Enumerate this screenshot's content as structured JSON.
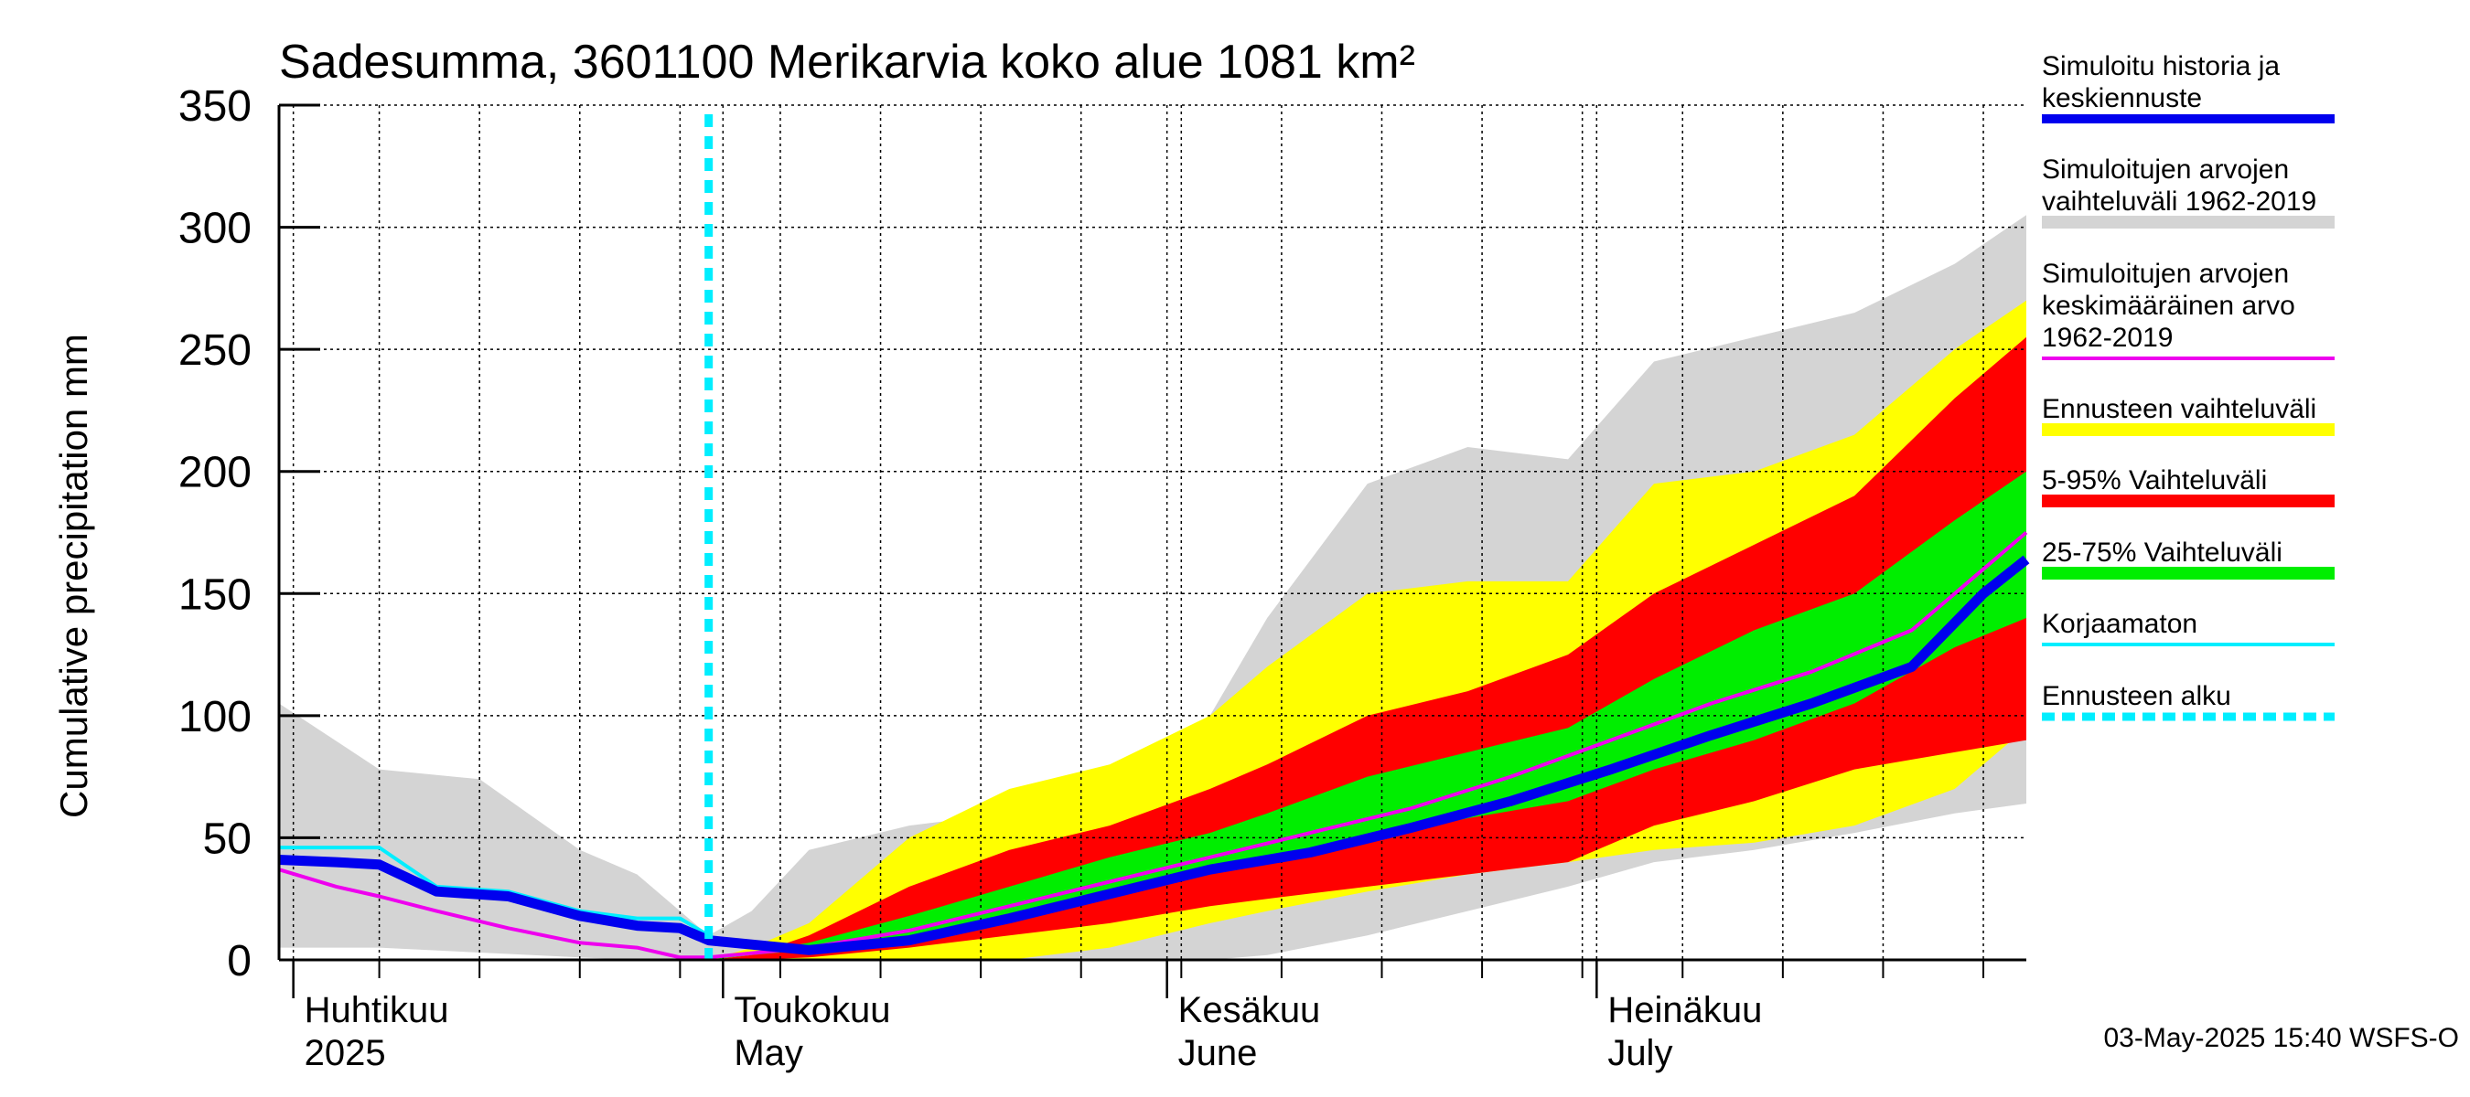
{
  "chart_data": {
    "type": "area",
    "title": "Sadesumma, 3601100 Merikarvia koko alue 1081 km²",
    "ylabel": "Cumulative precipitation   mm",
    "ylim": [
      0,
      350
    ],
    "yticks": [
      0,
      50,
      100,
      150,
      200,
      250,
      300,
      350
    ],
    "xlim": [
      "2025-03-31",
      "2025-07-31"
    ],
    "grid": true,
    "x_axis_months": [
      {
        "date": "2025-04-01",
        "line1": "Huhtikuu",
        "line2": "2025"
      },
      {
        "date": "2025-05-01",
        "line1": "Toukokuu",
        "line2": "May"
      },
      {
        "date": "2025-06-01",
        "line1": "Kesäkuu",
        "line2": "June"
      },
      {
        "date": "2025-07-01",
        "line1": "Heinäkuu",
        "line2": "July"
      }
    ],
    "forecast_start": "2025-04-30",
    "colors": {
      "hist_range": "#d4d4d4",
      "forecast_range": "#ffff00",
      "p5_95": "#ff0000",
      "p25_75": "#00ee00",
      "mean": "#ee00ee",
      "history_median": "#0000ee",
      "uncorrected": "#00eeff",
      "forecast_start": "#00eeff"
    },
    "band_x": [
      "2025-03-31",
      "2025-04-07",
      "2025-04-14",
      "2025-04-21",
      "2025-04-25",
      "2025-04-30",
      "2025-05-03",
      "2025-05-07",
      "2025-05-14",
      "2025-05-21",
      "2025-05-28",
      "2025-06-04",
      "2025-06-08",
      "2025-06-15",
      "2025-06-22",
      "2025-06-29",
      "2025-07-05",
      "2025-07-12",
      "2025-07-19",
      "2025-07-26",
      "2025-07-31"
    ],
    "bands": {
      "hist_range": {
        "low": [
          5,
          5,
          3,
          1,
          0,
          0,
          0,
          0,
          0,
          0,
          0,
          0,
          2,
          10,
          20,
          30,
          40,
          45,
          52,
          60,
          64
        ],
        "high": [
          105,
          78,
          74,
          45,
          35,
          10,
          20,
          45,
          55,
          60,
          70,
          100,
          140,
          195,
          210,
          205,
          245,
          255,
          265,
          285,
          305
        ]
      },
      "forecast_range": {
        "low": [
          null,
          null,
          null,
          null,
          null,
          0,
          0,
          0,
          0,
          0,
          5,
          15,
          20,
          28,
          35,
          40,
          45,
          48,
          55,
          70,
          95
        ],
        "high": [
          null,
          null,
          null,
          null,
          null,
          0,
          5,
          15,
          50,
          70,
          80,
          100,
          120,
          150,
          155,
          155,
          195,
          200,
          215,
          250,
          270
        ]
      },
      "p5_95": {
        "low": [
          null,
          null,
          null,
          null,
          null,
          0,
          0,
          1,
          5,
          10,
          15,
          22,
          25,
          30,
          35,
          40,
          55,
          65,
          78,
          85,
          90
        ],
        "high": [
          null,
          null,
          null,
          null,
          null,
          0,
          2,
          10,
          30,
          45,
          55,
          70,
          80,
          100,
          110,
          125,
          150,
          170,
          190,
          230,
          255
        ]
      },
      "p25_75": {
        "low": [
          null,
          null,
          null,
          null,
          null,
          0,
          2,
          4,
          10,
          18,
          27,
          35,
          40,
          50,
          58,
          65,
          78,
          90,
          105,
          128,
          140
        ],
        "high": [
          null,
          null,
          null,
          null,
          null,
          0,
          3,
          7,
          18,
          30,
          42,
          52,
          60,
          75,
          85,
          95,
          115,
          135,
          150,
          180,
          200
        ]
      }
    },
    "series": [
      {
        "name": "Simuloitu historia ja keskiennuste",
        "x": [
          "2025-03-31",
          "2025-04-04",
          "2025-04-07",
          "2025-04-11",
          "2025-04-16",
          "2025-04-21",
          "2025-04-25",
          "2025-04-28",
          "2025-04-30",
          "2025-05-07",
          "2025-05-14",
          "2025-05-21",
          "2025-05-28",
          "2025-06-04",
          "2025-06-11",
          "2025-06-18",
          "2025-06-25",
          "2025-07-02",
          "2025-07-09",
          "2025-07-16",
          "2025-07-23",
          "2025-07-28",
          "2025-07-31"
        ],
        "y": [
          41,
          40,
          39,
          28,
          26,
          18,
          14,
          13,
          8,
          4,
          8,
          17,
          27,
          37,
          44,
          54,
          65,
          78,
          92,
          105,
          120,
          150,
          164
        ]
      },
      {
        "name": "Simuloitujen arvojen keskimääräinen arvo 1962-2019",
        "x": [
          "2025-03-31",
          "2025-04-04",
          "2025-04-07",
          "2025-04-11",
          "2025-04-16",
          "2025-04-21",
          "2025-04-25",
          "2025-04-28",
          "2025-04-30",
          "2025-05-07",
          "2025-05-14",
          "2025-05-21",
          "2025-05-28",
          "2025-06-04",
          "2025-06-11",
          "2025-06-18",
          "2025-06-25",
          "2025-07-02",
          "2025-07-09",
          "2025-07-16",
          "2025-07-23",
          "2025-07-28",
          "2025-07-31"
        ],
        "y": [
          37,
          30,
          26,
          20,
          13,
          7,
          5,
          1,
          1,
          5,
          12,
          22,
          32,
          42,
          52,
          62,
          75,
          90,
          105,
          118,
          135,
          160,
          175
        ]
      },
      {
        "name": "Korjaamaton",
        "x": [
          "2025-03-31",
          "2025-04-04",
          "2025-04-07",
          "2025-04-11",
          "2025-04-16",
          "2025-04-21",
          "2025-04-25",
          "2025-04-28",
          "2025-04-30"
        ],
        "y": [
          46,
          46,
          46,
          30,
          28,
          20,
          17,
          17,
          10
        ]
      }
    ],
    "legend_placement": "right",
    "legend": [
      {
        "key": "history_median",
        "kind": "line",
        "lines": [
          "Simuloitu historia ja",
          "keskiennuste"
        ]
      },
      {
        "key": "hist_range",
        "kind": "band",
        "lines": [
          "Simuloitujen arvojen",
          "vaihteluväli 1962-2019"
        ]
      },
      {
        "key": "mean",
        "kind": "thinline",
        "lines": [
          "Simuloitujen arvojen",
          "keskimääräinen arvo",
          "   1962-2019"
        ]
      },
      {
        "key": "forecast_range",
        "kind": "band",
        "lines": [
          "Ennusteen vaihteluväli"
        ]
      },
      {
        "key": "p5_95",
        "kind": "band",
        "lines": [
          "5-95% Vaihteluväli"
        ]
      },
      {
        "key": "p25_75",
        "kind": "band",
        "lines": [
          "25-75% Vaihteluväli"
        ]
      },
      {
        "key": "uncorrected",
        "kind": "thinline",
        "lines": [
          "Korjaamaton"
        ]
      },
      {
        "key": "forecast_start",
        "kind": "dashed",
        "lines": [
          "Ennusteen alku"
        ]
      }
    ],
    "timestamp": "03-May-2025 15:40 WSFS-O"
  }
}
